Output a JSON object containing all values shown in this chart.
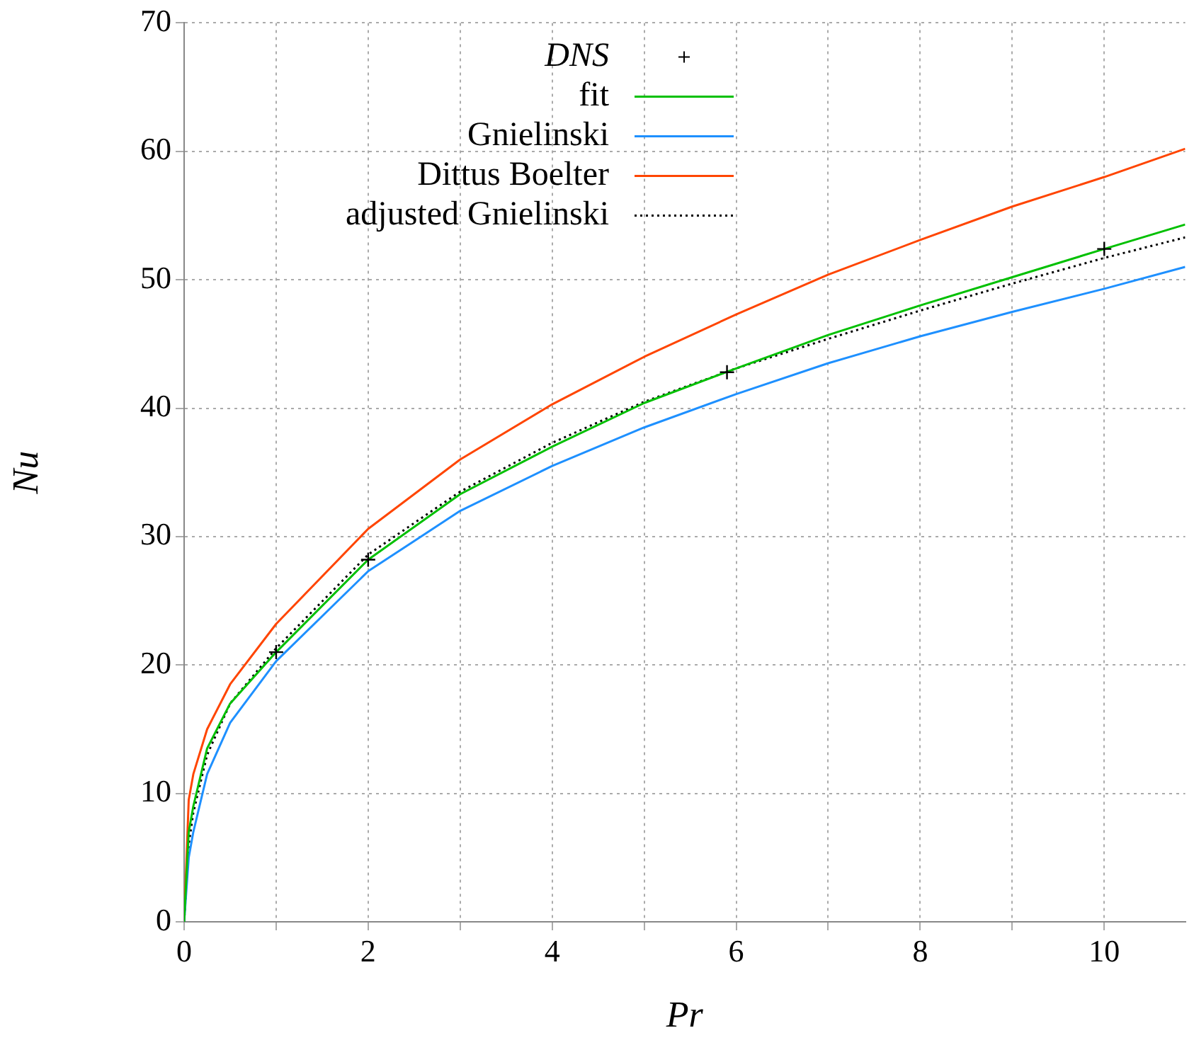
{
  "chart_data": {
    "type": "line",
    "xlabel": "Pr",
    "ylabel": "Nu",
    "xlim": [
      0,
      10.88
    ],
    "xticks": [
      0,
      {
        "value": 1,
        "label": null
      },
      2,
      {
        "value": 3,
        "label": null
      },
      4,
      {
        "value": 5,
        "label": null
      },
      6,
      {
        "value": 7,
        "label": null
      },
      8,
      {
        "value": 9,
        "label": null
      },
      10
    ],
    "ylim": [
      0,
      70
    ],
    "yticks": [
      0,
      10,
      20,
      30,
      40,
      50,
      60,
      70
    ],
    "grid": true,
    "legend": "top",
    "marker": "none",
    "line_style": "solid",
    "series": [
      {
        "name": "DNS",
        "type": "scatter",
        "marker": "cross",
        "color": "#000000",
        "x": [
          1,
          2,
          5.9,
          10
        ],
        "values": [
          21,
          28.2,
          42.8,
          52.4
        ]
      },
      {
        "name": "fit",
        "color": "#00c000",
        "x": [
          0,
          0.05,
          0.1,
          0.25,
          0.5,
          1,
          2,
          3,
          4,
          5,
          6,
          7,
          8,
          9,
          10,
          10.88
        ],
        "values": [
          0,
          7,
          9,
          13.5,
          17,
          21,
          28.2,
          33.3,
          37,
          40.4,
          43.1,
          45.7,
          48,
          50.2,
          52.4,
          54.3
        ]
      },
      {
        "name": "Gnielinski",
        "color": "#1e90ff",
        "x": [
          0,
          0.05,
          0.1,
          0.25,
          0.5,
          1,
          2,
          3,
          4,
          5,
          6,
          7,
          8,
          9,
          10,
          10.88
        ],
        "values": [
          0,
          5,
          7,
          11.5,
          15.5,
          20.3,
          27.3,
          32,
          35.5,
          38.5,
          41.1,
          43.5,
          45.6,
          47.5,
          49.3,
          51
        ]
      },
      {
        "name": "Dittus Boelter",
        "color": "#ff4500",
        "x": [
          0,
          0.05,
          0.1,
          0.25,
          0.5,
          1,
          2,
          3,
          4,
          5,
          6,
          7,
          8,
          9,
          10,
          10.88
        ],
        "values": [
          0,
          9.5,
          11.5,
          15,
          18.5,
          23.2,
          30.6,
          36,
          40.3,
          44,
          47.3,
          50.4,
          53.1,
          55.7,
          58,
          60.2
        ]
      },
      {
        "name": "adjusted Gnielinski",
        "color": "#000000",
        "line_style": "dotted",
        "x": [
          0,
          0.05,
          0.1,
          0.25,
          0.5,
          1,
          2,
          3,
          4,
          5,
          6,
          7,
          8,
          9,
          10,
          10.88
        ],
        "values": [
          0,
          6,
          8.5,
          13,
          17,
          21.3,
          28.6,
          33.5,
          37.3,
          40.5,
          43.1,
          45.4,
          47.6,
          49.7,
          51.7,
          53.3
        ]
      }
    ]
  }
}
